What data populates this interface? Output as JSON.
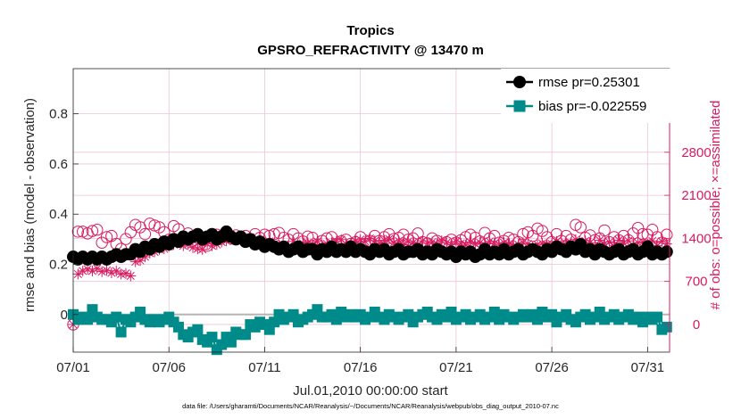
{
  "chart_data": {
    "type": "line",
    "title": "Tropics",
    "subtitle": "GPSRO_REFRACTIVITY @ 13470 m",
    "xlabel": "Jul.01,2010 00:00:00 start",
    "ylabel_left": "rmse and bias (model - observation)",
    "ylabel_right": "# of obs: o=possible; ×=assimilated",
    "x_unit": "day of July 2010 (1.0 = 07/01 00Z)",
    "xlim": [
      1,
      32.15
    ],
    "ylim_left": [
      -0.15,
      0.98
    ],
    "ylim_right": [
      -450,
      4160
    ],
    "x_ticks": [
      1,
      6,
      11,
      16,
      21,
      26,
      31
    ],
    "x_tick_labels": [
      "07/01",
      "07/06",
      "07/11",
      "07/16",
      "07/21",
      "07/26",
      "07/31"
    ],
    "y_left_ticks": [
      0,
      0.2,
      0.4,
      0.6,
      0.8
    ],
    "y_left_tick_labels": [
      "0",
      "0.2",
      "0.4",
      "0.6",
      "0.8"
    ],
    "y_right_ticks": [
      0,
      700,
      1400,
      2100,
      2800
    ],
    "y_right_tick_labels": [
      "0",
      "700",
      "1400",
      "2100",
      "2800"
    ],
    "grid": true,
    "legend_position": "top-right",
    "x": [
      1.0,
      1.25,
      1.5,
      1.75,
      2.0,
      2.25,
      2.5,
      2.75,
      3.0,
      3.25,
      3.5,
      3.75,
      4.0,
      4.25,
      4.5,
      4.75,
      5.0,
      5.25,
      5.5,
      5.75,
      6.0,
      6.25,
      6.5,
      6.75,
      7.0,
      7.25,
      7.5,
      7.75,
      8.0,
      8.25,
      8.5,
      8.75,
      9.0,
      9.25,
      9.5,
      9.75,
      10.0,
      10.25,
      10.5,
      10.75,
      11.0,
      11.25,
      11.5,
      11.75,
      12.0,
      12.25,
      12.5,
      12.75,
      13.0,
      13.25,
      13.5,
      13.75,
      14.0,
      14.25,
      14.5,
      14.75,
      15.0,
      15.25,
      15.5,
      15.75,
      16.0,
      16.25,
      16.5,
      16.75,
      17.0,
      17.25,
      17.5,
      17.75,
      18.0,
      18.25,
      18.5,
      18.75,
      19.0,
      19.25,
      19.5,
      19.75,
      20.0,
      20.25,
      20.5,
      20.75,
      21.0,
      21.25,
      21.5,
      21.75,
      22.0,
      22.25,
      22.5,
      22.75,
      23.0,
      23.25,
      23.5,
      23.75,
      24.0,
      24.25,
      24.5,
      24.75,
      25.0,
      25.25,
      25.5,
      25.75,
      26.0,
      26.25,
      26.5,
      26.75,
      27.0,
      27.25,
      27.5,
      27.75,
      28.0,
      28.25,
      28.5,
      28.75,
      29.0,
      29.25,
      29.5,
      29.75,
      30.0,
      30.25,
      30.5,
      30.75,
      31.0,
      31.25,
      31.5,
      31.75,
      32.0
    ],
    "series": [
      {
        "name": "rmse pr=0.25301",
        "axis": "left",
        "color": "#000000",
        "marker": "filled-circle",
        "values": [
          0.23,
          0.22,
          0.23,
          0.22,
          0.23,
          0.22,
          0.23,
          0.22,
          0.23,
          0.24,
          0.23,
          0.24,
          0.24,
          0.26,
          0.25,
          0.27,
          0.26,
          0.28,
          0.27,
          0.29,
          0.28,
          0.3,
          0.29,
          0.31,
          0.3,
          0.31,
          0.32,
          0.3,
          0.31,
          0.32,
          0.3,
          0.31,
          0.33,
          0.31,
          0.3,
          0.31,
          0.29,
          0.3,
          0.28,
          0.29,
          0.27,
          0.28,
          0.27,
          0.26,
          0.27,
          0.25,
          0.26,
          0.27,
          0.25,
          0.26,
          0.26,
          0.24,
          0.26,
          0.25,
          0.27,
          0.25,
          0.26,
          0.25,
          0.27,
          0.25,
          0.26,
          0.25,
          0.24,
          0.26,
          0.25,
          0.26,
          0.24,
          0.25,
          0.26,
          0.24,
          0.25,
          0.25,
          0.26,
          0.24,
          0.25,
          0.24,
          0.26,
          0.25,
          0.24,
          0.25,
          0.23,
          0.25,
          0.24,
          0.25,
          0.23,
          0.24,
          0.26,
          0.24,
          0.25,
          0.24,
          0.26,
          0.24,
          0.25,
          0.26,
          0.24,
          0.25,
          0.26,
          0.25,
          0.24,
          0.26,
          0.25,
          0.27,
          0.26,
          0.25,
          0.27,
          0.26,
          0.28,
          0.25,
          0.26,
          0.24,
          0.26,
          0.25,
          0.24,
          0.25,
          0.26,
          0.24,
          0.25,
          0.26,
          0.24,
          0.25,
          0.27,
          0.24,
          0.25,
          0.24,
          0.25
        ]
      },
      {
        "name": "bias pr=-0.022559",
        "axis": "left",
        "color": "#008b8b",
        "marker": "filled-square",
        "values": [
          0.0,
          -0.02,
          -0.01,
          -0.02,
          0.02,
          -0.01,
          -0.02,
          -0.02,
          -0.03,
          -0.01,
          -0.07,
          -0.02,
          -0.03,
          -0.01,
          0.01,
          -0.02,
          -0.03,
          -0.02,
          -0.03,
          -0.02,
          -0.01,
          -0.03,
          -0.05,
          -0.08,
          -0.09,
          -0.07,
          -0.06,
          -0.1,
          -0.11,
          -0.09,
          -0.14,
          -0.12,
          -0.09,
          -0.11,
          -0.07,
          -0.08,
          -0.08,
          -0.04,
          -0.05,
          -0.03,
          -0.04,
          -0.06,
          -0.03,
          0.0,
          -0.02,
          -0.01,
          0.0,
          -0.03,
          -0.02,
          -0.01,
          0.0,
          0.02,
          -0.01,
          -0.01,
          0.0,
          -0.02,
          0.01,
          -0.01,
          0.0,
          -0.01,
          0.0,
          -0.02,
          -0.01,
          0.01,
          -0.01,
          -0.02,
          0.0,
          -0.01,
          -0.02,
          -0.01,
          0.0,
          -0.03,
          -0.01,
          0.0,
          0.01,
          -0.01,
          -0.02,
          0.0,
          -0.01,
          0.01,
          -0.02,
          -0.01,
          0.0,
          -0.02,
          -0.01,
          0.0,
          -0.02,
          -0.01,
          0.01,
          -0.02,
          0.0,
          -0.01,
          -0.02,
          -0.01,
          0.0,
          -0.01,
          0.0,
          -0.02,
          0.01,
          -0.01,
          0.0,
          -0.03,
          -0.01,
          0.0,
          -0.02,
          -0.03,
          -0.01,
          0.0,
          -0.02,
          -0.01,
          0.01,
          -0.02,
          -0.01,
          0.0,
          -0.02,
          -0.01,
          0.0,
          -0.02,
          -0.01,
          -0.03,
          -0.01,
          -0.02,
          -0.01,
          -0.06,
          -0.05
        ]
      },
      {
        "name": "possible obs",
        "axis": "right",
        "color": "#d81b60",
        "marker": "open-circle",
        "values": [
          0,
          1510,
          1510,
          1480,
          1520,
          1540,
          1330,
          1420,
          1440,
          1310,
          1230,
          1390,
          1500,
          1620,
          1580,
          1470,
          1640,
          1610,
          1580,
          1500,
          1380,
          1600,
          1550,
          1410,
          1480,
          1360,
          1410,
          1370,
          1280,
          1410,
          1460,
          1440,
          1480,
          1400,
          1450,
          1410,
          1440,
          1380,
          1470,
          1410,
          1460,
          1440,
          1470,
          1490,
          1410,
          1380,
          1470,
          1400,
          1350,
          1430,
          1410,
          1300,
          1360,
          1400,
          1420,
          1310,
          1350,
          1380,
          1310,
          1340,
          1420,
          1310,
          1360,
          1440,
          1360,
          1420,
          1470,
          1390,
          1410,
          1460,
          1380,
          1400,
          1480,
          1340,
          1320,
          1400,
          1360,
          1300,
          1340,
          1380,
          1330,
          1370,
          1420,
          1460,
          1410,
          1350,
          1490,
          1400,
          1440,
          1330,
          1360,
          1410,
          1380,
          1340,
          1470,
          1500,
          1440,
          1560,
          1520,
          1420,
          1340,
          1470,
          1360,
          1440,
          1380,
          1620,
          1580,
          1410,
          1450,
          1370,
          1400,
          1530,
          1340,
          1420,
          1370,
          1440,
          1370,
          1480,
          1570,
          1470,
          1460,
          1540,
          1420,
          1330,
          1460
        ]
      },
      {
        "name": "assimilated obs",
        "axis": "right",
        "color": "#d81b60",
        "marker": "asterisk",
        "values": [
          0,
          820,
          870,
          900,
          870,
          910,
          860,
          880,
          840,
          870,
          820,
          830,
          790,
          1020,
          1040,
          1100,
          1160,
          1180,
          1220,
          1230,
          1270,
          1300,
          1340,
          1280,
          1300,
          1250,
          1230,
          1220,
          1310,
          1280,
          1300,
          1340,
          1360,
          1380,
          1410,
          1370,
          1390,
          1420,
          1360,
          1350,
          1330,
          1350,
          1310,
          1290,
          1260,
          1270,
          1350,
          1280,
          1320,
          1330,
          1300,
          1350,
          1280,
          1310,
          1330,
          1350,
          1380,
          1310,
          1300,
          1360,
          1380,
          1350,
          1400,
          1360,
          1320,
          1370,
          1390,
          1330,
          1360,
          1300,
          1350,
          1330,
          1300,
          1360,
          1320,
          1340,
          1310,
          1360,
          1330,
          1300,
          1350,
          1320,
          1290,
          1340,
          1310,
          1330,
          1290,
          1350,
          1320,
          1300,
          1330,
          1310,
          1280,
          1300,
          1330,
          1310,
          1270,
          1300,
          1320,
          1290,
          1310,
          1350,
          1320,
          1300,
          1330,
          1380,
          1300,
          1360,
          1330,
          1280,
          1370,
          1310,
          1340,
          1280,
          1370,
          1320,
          1360,
          1290,
          1330,
          1340,
          1310,
          1360,
          1280,
          1350,
          1310
        ]
      }
    ],
    "legend": [
      {
        "label": "rmse pr=0.25301",
        "color": "#000000",
        "marker": "filled-circle"
      },
      {
        "label": "bias pr=-0.022559",
        "color": "#008b8b",
        "marker": "filled-square"
      }
    ]
  },
  "footnote": "data file: /Users/gharamti/Documents/NCAR/Reanalysis/~/Documents/NCAR/Reanalysis/webpub/obs_diag_output_2010-07.nc"
}
